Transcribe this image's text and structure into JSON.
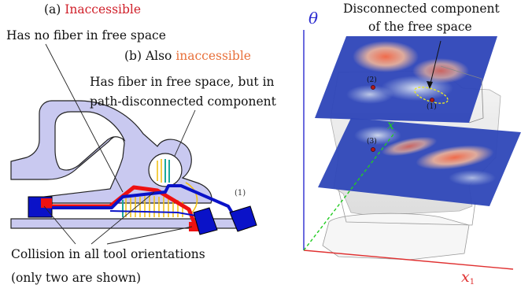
{
  "left_panel": {
    "label_a_prefix": "(a) ",
    "label_a_word": "Inaccessible",
    "label_a_desc": "Has no fiber in free space",
    "label_b_prefix": "(b) Also ",
    "label_b_word": "inaccessible",
    "label_b_desc_line1": "Has fiber in free space, but in",
    "label_b_desc_line2": "path-disconnected component",
    "tool_pose_marker": "(1)",
    "collision_line1": "Collision in all tool orientations",
    "collision_line2": "(only two are shown)"
  },
  "right_panel": {
    "title_line1": "Disconnected component",
    "title_line2": "of the free space",
    "axis_theta": "θ",
    "axis_x": "x",
    "axis_x1_main": "x",
    "axis_x1_sub": "1",
    "point_1": "(1)",
    "point_2": "(2)",
    "point_3": "(3)"
  },
  "colors": {
    "inaccessible_red": "#d0202a",
    "also_inaccessible_orange": "#e8703a",
    "part_lavender": "#c9c9f0",
    "tool_blue": "#0a12c8",
    "collision_red": "#ee1111",
    "fiber_yellow": "#f2c21a",
    "fiber_teal": "#1aa89a",
    "theta_axis_blue": "#2a2ad0",
    "x_axis_red": "#e03030",
    "diag_axis_green": "#22cc22"
  }
}
